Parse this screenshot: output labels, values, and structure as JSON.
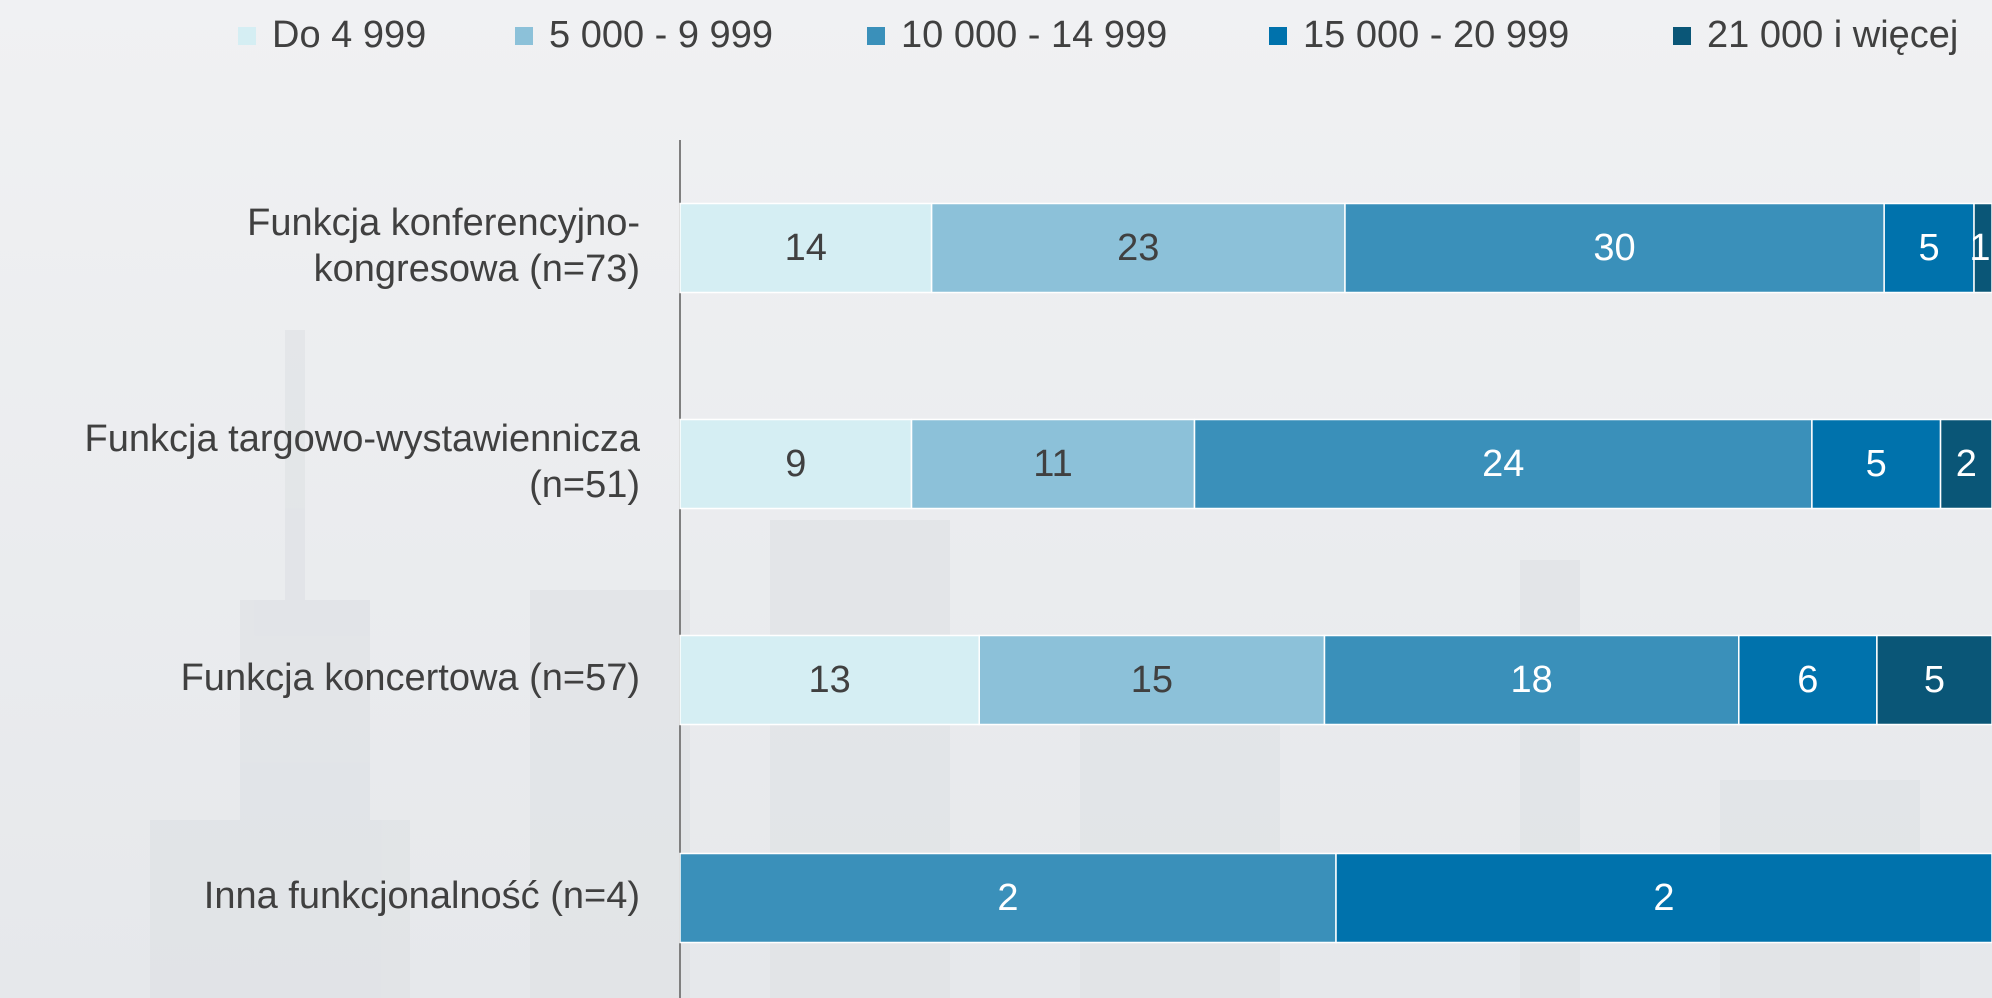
{
  "chart_data": {
    "type": "stacked-bar-100",
    "categories": [
      "Funkcja konferencyjno-\nkongresowa (n=73)",
      "Funkcja targowo-wystawiennicza\n(n=51)",
      "Funkcja koncertowa (n=57)",
      "Inna funkcjonalność (n=4)"
    ],
    "series": [
      {
        "name": "Do 4 999",
        "color": "#d5eef3",
        "values": [
          14,
          9,
          13,
          null
        ]
      },
      {
        "name": "5 000 - 9 999",
        "color": "#8cc1d9",
        "values": [
          23,
          11,
          15,
          null
        ]
      },
      {
        "name": "10 000 - 14 999",
        "color": "#3a90ba",
        "values": [
          30,
          24,
          18,
          2
        ]
      },
      {
        "name": "15 000 - 20 999",
        "color": "#0072ac",
        "values": [
          5,
          5,
          6,
          2
        ]
      },
      {
        "name": "21 000 i więcej",
        "color": "#0a5677",
        "values": [
          1,
          2,
          5,
          null
        ]
      }
    ],
    "legend": "top"
  }
}
